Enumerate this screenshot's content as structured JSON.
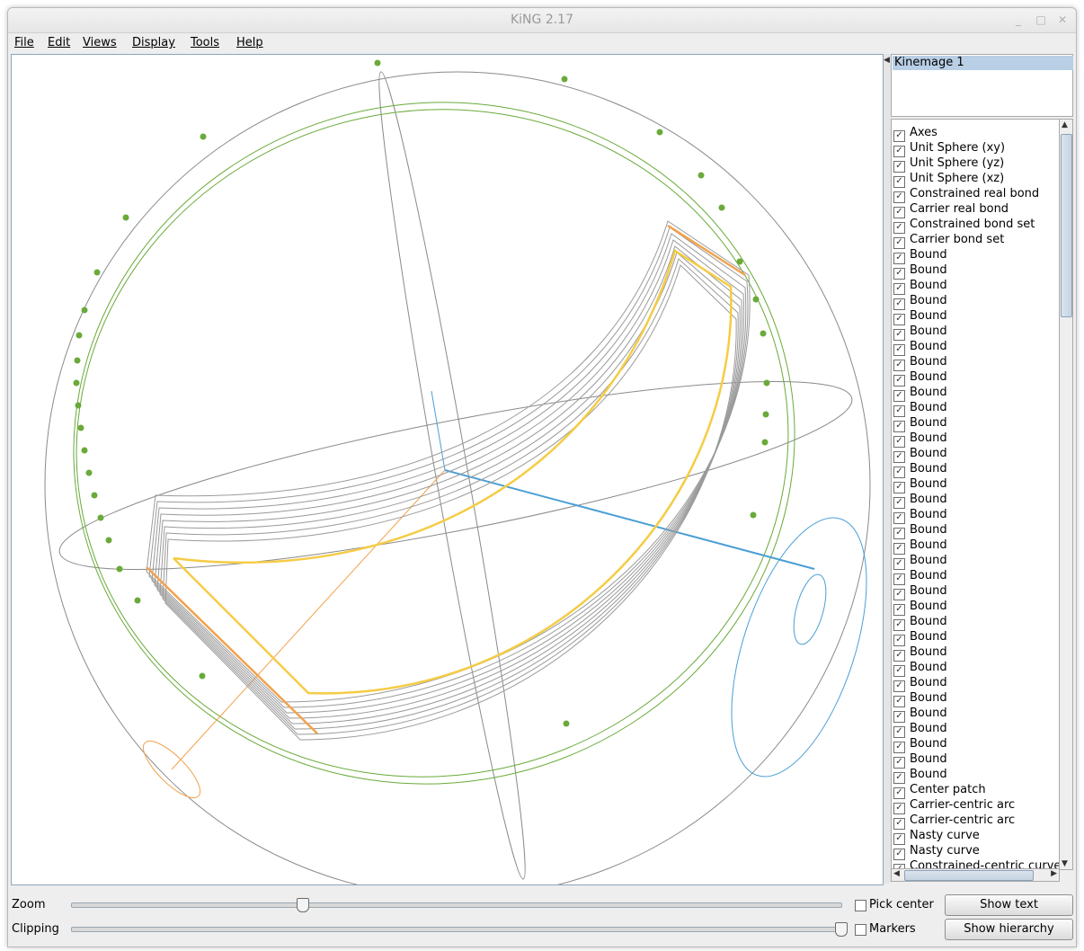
{
  "window": {
    "title": "KiNG 2.17"
  },
  "menu": [
    "File",
    "Edit",
    "Views",
    "Display",
    "Tools",
    "Help"
  ],
  "kinemage": {
    "selected": "Kinemage 1"
  },
  "tree": [
    "Axes",
    "Unit Sphere (xy)",
    "Unit Sphere (yz)",
    "Unit Sphere (xz)",
    "Constrained real bond",
    "Carrier real bond",
    "Constrained bond set",
    "Carrier bond set",
    "Bound",
    "Bound",
    "Bound",
    "Bound",
    "Bound",
    "Bound",
    "Bound",
    "Bound",
    "Bound",
    "Bound",
    "Bound",
    "Bound",
    "Bound",
    "Bound",
    "Bound",
    "Bound",
    "Bound",
    "Bound",
    "Bound",
    "Bound",
    "Bound",
    "Bound",
    "Bound",
    "Bound",
    "Bound",
    "Bound",
    "Bound",
    "Bound",
    "Bound",
    "Bound",
    "Bound",
    "Bound",
    "Bound",
    "Bound",
    "Bound",
    "Center patch",
    "Carrier-centric arc",
    "Carrier-centric arc",
    "Nasty curve",
    "Nasty curve",
    "Constrained-centric curve"
  ],
  "controls": {
    "zoom_label": "Zoom",
    "clipping_label": "Clipping",
    "pick_center_label": "Pick center",
    "markers_label": "Markers",
    "show_text": "Show text",
    "show_hierarchy": "Show hierarchy",
    "zoom_level": 0.3,
    "clipping_level": 1.0,
    "pick_center_checked": false,
    "markers_checked": false
  },
  "colors": {
    "sphere": "#8a8a8a",
    "green": "#6aaa3a",
    "orange": "#f2a24c",
    "yellow": "#f5cc45",
    "blue": "#4a9fd5",
    "selection": "#b8cfe5"
  }
}
